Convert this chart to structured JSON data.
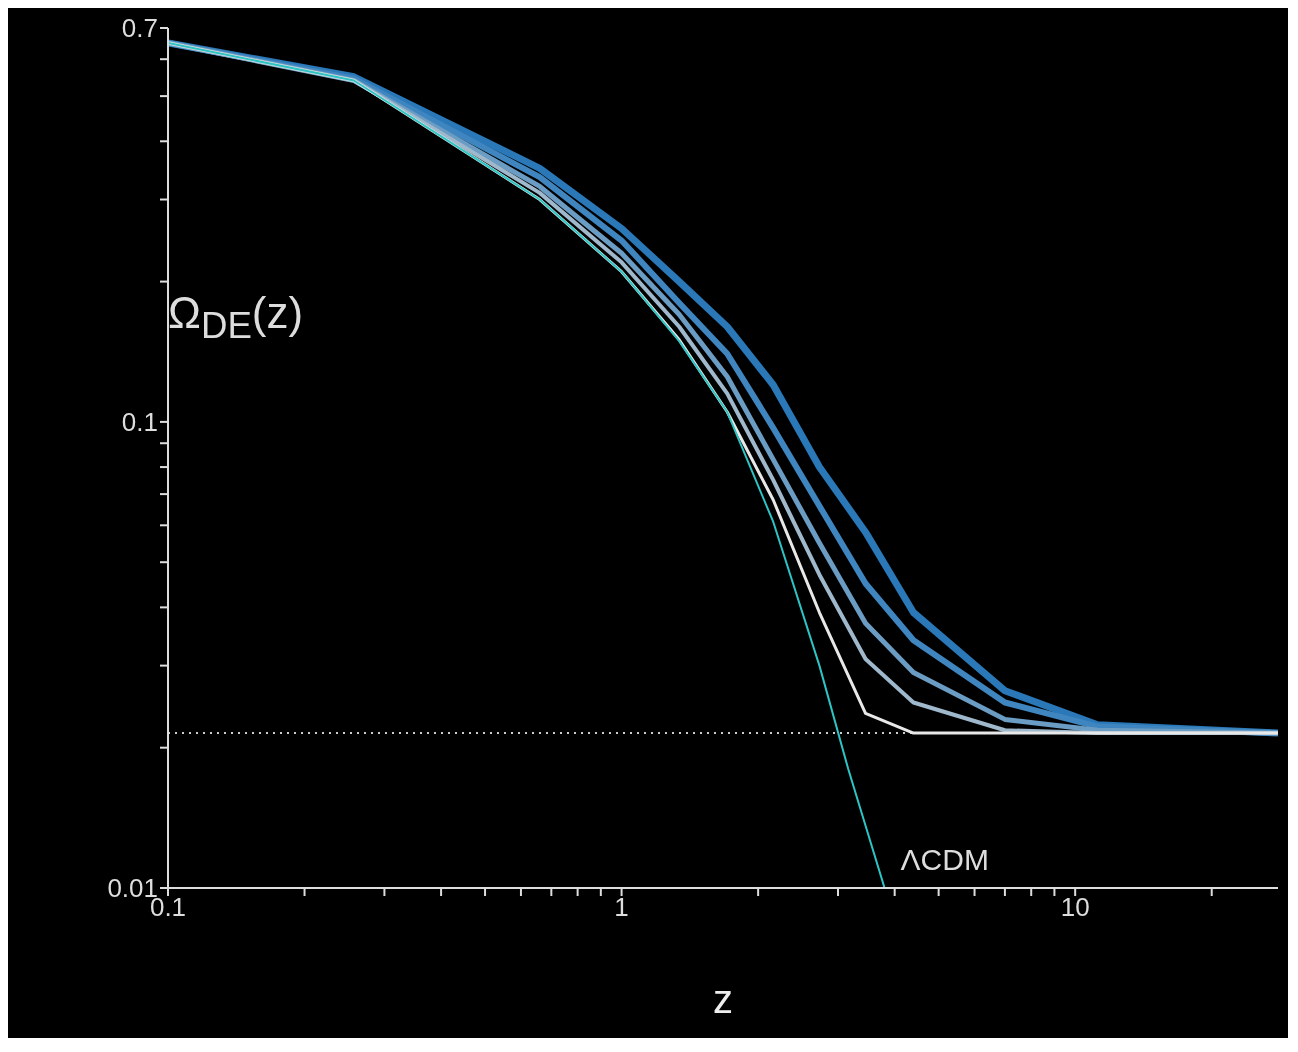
{
  "chart_data": {
    "type": "line",
    "xlabel": "z",
    "ylabel": "Ω$_{DE}$(z)",
    "log": "xy",
    "marker": "none",
    "line_style": "solid",
    "xlim": [
      0.1,
      28
    ],
    "ylim": [
      0.01,
      0.7
    ],
    "xticks": [
      0.1,
      {
        "value": 0.2,
        "label": null
      },
      {
        "value": 0.3,
        "label": null
      },
      {
        "value": 0.4,
        "label": null
      },
      {
        "value": 0.5,
        "label": null
      },
      {
        "value": 0.6,
        "label": null
      },
      {
        "value": 0.7,
        "label": null
      },
      {
        "value": 0.8,
        "label": null
      },
      {
        "value": 0.9,
        "label": null
      },
      1,
      {
        "value": 2,
        "label": null
      },
      {
        "value": 3,
        "label": null
      },
      {
        "value": 4,
        "label": null
      },
      {
        "value": 5,
        "label": null
      },
      {
        "value": 6,
        "label": null
      },
      {
        "value": 7,
        "label": null
      },
      {
        "value": 8,
        "label": null
      },
      {
        "value": 9,
        "label": null
      },
      10,
      {
        "value": 20,
        "label": null
      }
    ],
    "yticks": [
      0.01,
      {
        "value": 0.02,
        "label": null
      },
      {
        "value": 0.03,
        "label": null
      },
      {
        "value": 0.04,
        "label": null
      },
      {
        "value": 0.05,
        "label": null
      },
      {
        "value": 0.06,
        "label": null
      },
      {
        "value": 0.07,
        "label": null
      },
      {
        "value": 0.08,
        "label": null
      },
      {
        "value": 0.09,
        "label": null
      },
      0.1,
      {
        "value": 0.2,
        "label": null
      },
      {
        "value": 0.3,
        "label": null
      },
      {
        "value": 0.4,
        "label": null
      },
      {
        "value": 0.5,
        "label": null
      },
      {
        "value": 0.6,
        "label": null
      },
      0.7
    ],
    "x": [
      0.1,
      0.257,
      0.66,
      1.0,
      1.34,
      1.71,
      2.16,
      2.73,
      3.45,
      4.4,
      7.0,
      11.2,
      28
    ],
    "series": [
      {
        "color": "#2a78b8",
        "values": [
          0.65,
          0.55,
          0.35,
          0.26,
          0.2,
          0.16,
          0.12,
          0.08,
          0.058,
          0.039,
          0.0265,
          0.0224,
          0.0215
        ]
      },
      {
        "color": "#3f86c0",
        "values": [
          0.65,
          0.545,
          0.335,
          0.245,
          0.18,
          0.14,
          0.097,
          0.066,
          0.045,
          0.034,
          0.025,
          0.0222,
          0.0215
        ]
      },
      {
        "color": "#6a9cc4",
        "values": [
          0.65,
          0.54,
          0.32,
          0.23,
          0.17,
          0.125,
          0.083,
          0.055,
          0.037,
          0.029,
          0.023,
          0.0218,
          0.0215
        ]
      },
      {
        "color": "#9fb8cc",
        "values": [
          0.65,
          0.54,
          0.31,
          0.22,
          0.16,
          0.115,
          0.075,
          0.047,
          0.031,
          0.025,
          0.0218,
          0.0215,
          0.0215
        ]
      },
      {
        "color": "#e8e8e8",
        "values": [
          0.65,
          0.54,
          0.3,
          0.21,
          0.15,
          0.105,
          0.068,
          0.039,
          0.0237,
          0.0215,
          0.0215,
          0.0215,
          0.0215
        ]
      },
      {
        "name": "ΛCDM",
        "color": "#2ec4c4",
        "x": [
          0.1,
          0.257,
          0.66,
          1.0,
          1.34,
          1.71,
          2.16,
          2.73,
          3.16,
          3.8
        ],
        "values": [
          0.65,
          0.54,
          0.3,
          0.21,
          0.149,
          0.105,
          0.061,
          0.03,
          0.018,
          0.01
        ]
      }
    ],
    "ref_lines": [
      {
        "axis": "y",
        "value": 0.0215,
        "color": "#cccccc",
        "line_style": "dotted"
      }
    ]
  }
}
